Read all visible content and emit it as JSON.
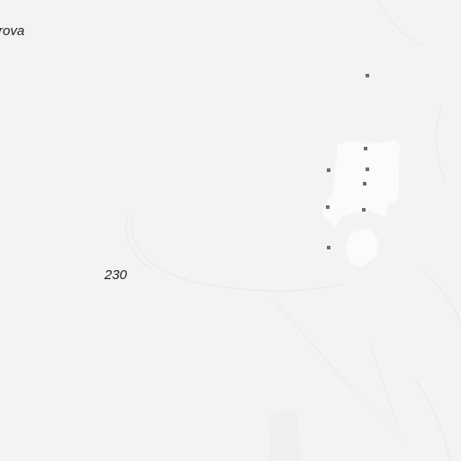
{
  "map": {
    "place_label": "rova",
    "elevation_label": "230",
    "colors": {
      "background": "#f3f3f3",
      "builtup_area": "#fbfbfb",
      "contour": "#e9ecec",
      "poi_marker": "#6d6d6d",
      "label_text": "#222222"
    },
    "poi_count": 9
  }
}
